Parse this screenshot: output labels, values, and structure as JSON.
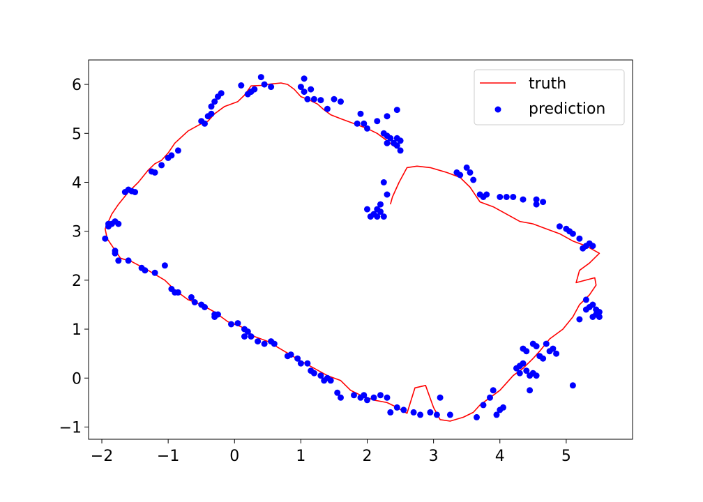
{
  "chart_data": {
    "type": "scatter",
    "xlim": [
      -2.2,
      6.0
    ],
    "ylim": [
      -1.25,
      6.5
    ],
    "x_ticks": [
      -2,
      -1,
      0,
      1,
      2,
      3,
      4,
      5
    ],
    "x_tick_labels": [
      "−2",
      "−1",
      "0",
      "1",
      "2",
      "3",
      "4",
      "5"
    ],
    "y_ticks": [
      -1,
      0,
      1,
      2,
      3,
      4,
      5,
      6
    ],
    "y_tick_labels": [
      "−1",
      "0",
      "1",
      "2",
      "3",
      "4",
      "5",
      "6"
    ],
    "grid": false,
    "legend_position": "top-right",
    "series": [
      {
        "name": "truth",
        "kind": "line",
        "color": "#ff0000",
        "points": [
          [
            2.5,
            4.67
          ],
          [
            2.4,
            4.74
          ],
          [
            2.3,
            4.85
          ],
          [
            2.15,
            5.0
          ],
          [
            2.0,
            5.1
          ],
          [
            1.8,
            5.2
          ],
          [
            1.6,
            5.3
          ],
          [
            1.45,
            5.38
          ],
          [
            1.35,
            5.48
          ],
          [
            1.25,
            5.6
          ],
          [
            1.1,
            5.7
          ],
          [
            1.0,
            5.75
          ],
          [
            0.9,
            5.9
          ],
          [
            0.8,
            6.0
          ],
          [
            0.7,
            6.03
          ],
          [
            0.55,
            6.01
          ],
          [
            0.4,
            5.98
          ],
          [
            0.25,
            5.97
          ],
          [
            0.15,
            5.78
          ],
          [
            0.05,
            5.65
          ],
          [
            -0.05,
            5.6
          ],
          [
            -0.15,
            5.55
          ],
          [
            -0.3,
            5.4
          ],
          [
            -0.4,
            5.25
          ],
          [
            -0.5,
            5.2
          ],
          [
            -0.7,
            5.05
          ],
          [
            -0.9,
            4.8
          ],
          [
            -1.0,
            4.6
          ],
          [
            -1.1,
            4.45
          ],
          [
            -1.2,
            4.38
          ],
          [
            -1.3,
            4.25
          ],
          [
            -1.45,
            4.0
          ],
          [
            -1.6,
            3.8
          ],
          [
            -1.75,
            3.55
          ],
          [
            -1.85,
            3.35
          ],
          [
            -1.95,
            3.05
          ],
          [
            -1.92,
            2.85
          ],
          [
            -1.82,
            2.65
          ],
          [
            -1.72,
            2.45
          ],
          [
            -1.55,
            2.38
          ],
          [
            -1.3,
            2.2
          ],
          [
            -1.05,
            2.0
          ],
          [
            -0.9,
            1.8
          ],
          [
            -0.7,
            1.6
          ],
          [
            -0.5,
            1.5
          ],
          [
            -0.3,
            1.35
          ],
          [
            -0.1,
            1.15
          ],
          [
            0.1,
            1.05
          ],
          [
            0.3,
            0.85
          ],
          [
            0.5,
            0.75
          ],
          [
            0.75,
            0.55
          ],
          [
            1.0,
            0.35
          ],
          [
            1.2,
            0.2
          ],
          [
            1.4,
            0.05
          ],
          [
            1.6,
            -0.05
          ],
          [
            1.75,
            -0.25
          ],
          [
            1.9,
            -0.35
          ],
          [
            2.1,
            -0.45
          ],
          [
            2.3,
            -0.5
          ],
          [
            2.45,
            -0.6
          ],
          [
            2.6,
            -0.72
          ],
          [
            2.72,
            -0.2
          ],
          [
            2.88,
            -0.15
          ],
          [
            3.0,
            -0.6
          ],
          [
            3.1,
            -0.85
          ],
          [
            3.25,
            -0.88
          ],
          [
            3.45,
            -0.8
          ],
          [
            3.6,
            -0.7
          ],
          [
            3.7,
            -0.55
          ],
          [
            3.85,
            -0.4
          ],
          [
            4.0,
            -0.25
          ],
          [
            4.1,
            -0.1
          ],
          [
            4.2,
            0.05
          ],
          [
            4.35,
            0.2
          ],
          [
            4.5,
            0.4
          ],
          [
            4.6,
            0.55
          ],
          [
            4.75,
            0.8
          ],
          [
            4.95,
            1.0
          ],
          [
            5.1,
            1.25
          ],
          [
            5.2,
            1.5
          ],
          [
            5.35,
            1.7
          ],
          [
            5.45,
            1.9
          ],
          [
            5.43,
            2.05
          ],
          [
            5.15,
            1.95
          ],
          [
            5.2,
            2.2
          ],
          [
            5.35,
            2.35
          ],
          [
            5.5,
            2.55
          ],
          [
            5.3,
            2.7
          ],
          [
            5.1,
            2.8
          ],
          [
            4.9,
            2.95
          ],
          [
            4.7,
            3.05
          ],
          [
            4.5,
            3.15
          ],
          [
            4.3,
            3.2
          ],
          [
            4.1,
            3.35
          ],
          [
            3.9,
            3.5
          ],
          [
            3.7,
            3.6
          ],
          [
            3.55,
            3.9
          ],
          [
            3.4,
            4.1
          ],
          [
            3.2,
            4.2
          ],
          [
            2.95,
            4.3
          ],
          [
            2.75,
            4.33
          ],
          [
            2.6,
            4.3
          ],
          [
            2.48,
            4.0
          ],
          [
            2.38,
            3.7
          ],
          [
            2.35,
            3.55
          ]
        ]
      },
      {
        "name": "prediction",
        "kind": "scatter",
        "color": "#0000ff",
        "points": [
          [
            2.5,
            4.65
          ],
          [
            2.45,
            4.75
          ],
          [
            2.4,
            4.8
          ],
          [
            2.35,
            4.9
          ],
          [
            2.3,
            4.95
          ],
          [
            2.25,
            5.0
          ],
          [
            2.45,
            4.9
          ],
          [
            2.5,
            4.85
          ],
          [
            2.3,
            4.8
          ],
          [
            2.15,
            5.25
          ],
          [
            2.3,
            5.35
          ],
          [
            2.45,
            5.48
          ],
          [
            2.0,
            5.1
          ],
          [
            1.95,
            5.2
          ],
          [
            1.9,
            5.4
          ],
          [
            1.85,
            5.2
          ],
          [
            1.6,
            5.65
          ],
          [
            1.5,
            5.7
          ],
          [
            1.4,
            5.5
          ],
          [
            1.3,
            5.68
          ],
          [
            1.2,
            5.7
          ],
          [
            1.15,
            5.9
          ],
          [
            1.1,
            5.7
          ],
          [
            1.0,
            5.95
          ],
          [
            1.05,
            5.85
          ],
          [
            1.05,
            6.12
          ],
          [
            0.4,
            6.15
          ],
          [
            0.45,
            6.0
          ],
          [
            0.3,
            5.9
          ],
          [
            0.25,
            5.85
          ],
          [
            0.2,
            5.8
          ],
          [
            0.1,
            5.98
          ],
          [
            0.55,
            5.95
          ],
          [
            -0.2,
            5.82
          ],
          [
            -0.25,
            5.75
          ],
          [
            -0.3,
            5.65
          ],
          [
            -0.35,
            5.55
          ],
          [
            -0.35,
            5.4
          ],
          [
            -0.4,
            5.35
          ],
          [
            -0.45,
            5.2
          ],
          [
            -0.5,
            5.25
          ],
          [
            -0.85,
            4.65
          ],
          [
            -0.95,
            4.55
          ],
          [
            -1.0,
            4.5
          ],
          [
            -1.1,
            4.35
          ],
          [
            -1.2,
            4.2
          ],
          [
            -1.25,
            4.22
          ],
          [
            -1.5,
            3.8
          ],
          [
            -1.55,
            3.82
          ],
          [
            -1.6,
            3.85
          ],
          [
            -1.65,
            3.8
          ],
          [
            -1.75,
            3.15
          ],
          [
            -1.8,
            3.2
          ],
          [
            -1.85,
            3.15
          ],
          [
            -1.9,
            3.1
          ],
          [
            -1.9,
            3.15
          ],
          [
            -1.95,
            2.85
          ],
          [
            -1.8,
            2.55
          ],
          [
            -1.8,
            2.6
          ],
          [
            -1.75,
            2.4
          ],
          [
            -1.6,
            2.4
          ],
          [
            -1.4,
            2.25
          ],
          [
            -1.35,
            2.2
          ],
          [
            -1.2,
            2.15
          ],
          [
            -1.05,
            2.3
          ],
          [
            -0.95,
            1.82
          ],
          [
            -0.9,
            1.75
          ],
          [
            -0.85,
            1.75
          ],
          [
            -0.65,
            1.65
          ],
          [
            -0.6,
            1.55
          ],
          [
            -0.5,
            1.5
          ],
          [
            -0.45,
            1.45
          ],
          [
            -0.3,
            1.3
          ],
          [
            -0.25,
            1.3
          ],
          [
            -0.3,
            1.25
          ],
          [
            -0.05,
            1.1
          ],
          [
            0.05,
            1.12
          ],
          [
            0.15,
            1.0
          ],
          [
            0.2,
            0.95
          ],
          [
            0.15,
            0.85
          ],
          [
            0.25,
            0.85
          ],
          [
            0.35,
            0.75
          ],
          [
            0.45,
            0.7
          ],
          [
            0.55,
            0.75
          ],
          [
            0.6,
            0.7
          ],
          [
            0.8,
            0.45
          ],
          [
            0.85,
            0.48
          ],
          [
            0.95,
            0.4
          ],
          [
            1.0,
            0.3
          ],
          [
            1.1,
            0.3
          ],
          [
            1.15,
            0.15
          ],
          [
            1.2,
            0.1
          ],
          [
            1.3,
            0.05
          ],
          [
            1.4,
            0.0
          ],
          [
            1.35,
            -0.05
          ],
          [
            1.45,
            -0.05
          ],
          [
            1.55,
            -0.3
          ],
          [
            1.6,
            -0.4
          ],
          [
            1.8,
            -0.35
          ],
          [
            1.9,
            -0.4
          ],
          [
            1.95,
            -0.35
          ],
          [
            2.0,
            -0.45
          ],
          [
            2.1,
            -0.4
          ],
          [
            2.2,
            -0.35
          ],
          [
            2.3,
            -0.4
          ],
          [
            2.35,
            -0.7
          ],
          [
            2.45,
            -0.6
          ],
          [
            2.55,
            -0.65
          ],
          [
            2.7,
            -0.7
          ],
          [
            2.8,
            -0.75
          ],
          [
            2.95,
            -0.7
          ],
          [
            3.05,
            -0.75
          ],
          [
            3.1,
            -0.4
          ],
          [
            3.25,
            -0.75
          ],
          [
            3.65,
            -0.8
          ],
          [
            3.75,
            -0.55
          ],
          [
            3.85,
            -0.4
          ],
          [
            3.9,
            -0.25
          ],
          [
            3.95,
            -0.75
          ],
          [
            4.0,
            -0.65
          ],
          [
            4.05,
            -0.6
          ],
          [
            4.25,
            0.2
          ],
          [
            4.3,
            0.25
          ],
          [
            4.35,
            0.3
          ],
          [
            4.4,
            0.15
          ],
          [
            4.45,
            0.05
          ],
          [
            4.5,
            0.1
          ],
          [
            4.55,
            0.05
          ],
          [
            4.5,
            0.7
          ],
          [
            4.55,
            0.65
          ],
          [
            4.6,
            0.45
          ],
          [
            4.65,
            0.4
          ],
          [
            4.7,
            0.7
          ],
          [
            4.75,
            0.55
          ],
          [
            4.8,
            0.6
          ],
          [
            4.85,
            0.5
          ],
          [
            4.4,
            0.55
          ],
          [
            4.35,
            0.6
          ],
          [
            4.3,
            0.1
          ],
          [
            4.45,
            -0.25
          ],
          [
            5.1,
            -0.15
          ],
          [
            5.2,
            1.2
          ],
          [
            5.3,
            1.4
          ],
          [
            5.35,
            1.45
          ],
          [
            5.4,
            1.5
          ],
          [
            5.45,
            1.4
          ],
          [
            5.5,
            1.35
          ],
          [
            5.45,
            1.3
          ],
          [
            5.5,
            1.25
          ],
          [
            5.4,
            1.25
          ],
          [
            5.3,
            1.6
          ],
          [
            5.25,
            2.65
          ],
          [
            5.3,
            2.7
          ],
          [
            5.35,
            2.75
          ],
          [
            5.4,
            2.7
          ],
          [
            5.2,
            2.85
          ],
          [
            5.1,
            2.95
          ],
          [
            5.0,
            3.05
          ],
          [
            5.05,
            3.0
          ],
          [
            4.9,
            3.1
          ],
          [
            4.65,
            3.6
          ],
          [
            4.55,
            3.55
          ],
          [
            4.55,
            3.65
          ],
          [
            4.35,
            3.65
          ],
          [
            4.2,
            3.7
          ],
          [
            4.1,
            3.7
          ],
          [
            4.0,
            3.7
          ],
          [
            3.8,
            3.75
          ],
          [
            3.7,
            3.75
          ],
          [
            3.75,
            3.7
          ],
          [
            3.6,
            4.05
          ],
          [
            3.55,
            4.2
          ],
          [
            3.5,
            4.3
          ],
          [
            3.4,
            4.15
          ],
          [
            3.35,
            4.2
          ],
          [
            2.3,
            3.75
          ],
          [
            2.25,
            4.0
          ],
          [
            2.2,
            3.55
          ],
          [
            2.15,
            3.45
          ],
          [
            2.1,
            3.35
          ],
          [
            2.05,
            3.3
          ],
          [
            2.0,
            3.45
          ],
          [
            2.15,
            3.3
          ],
          [
            2.2,
            3.4
          ],
          [
            2.25,
            3.3
          ]
        ]
      }
    ]
  }
}
